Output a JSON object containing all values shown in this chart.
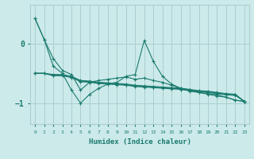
{
  "xlabel": "Humidex (Indice chaleur)",
  "ylabel": "",
  "background_color": "#cceaea",
  "grid_color": "#aacece",
  "line_color": "#1a7a6e",
  "x_values": [
    0,
    1,
    2,
    3,
    4,
    5,
    6,
    7,
    8,
    9,
    10,
    11,
    12,
    13,
    14,
    15,
    16,
    17,
    18,
    19,
    20,
    21,
    22,
    23
  ],
  "series": [
    [
      0.42,
      0.07,
      -0.25,
      -0.45,
      -0.52,
      -0.78,
      -0.65,
      -0.62,
      -0.6,
      -0.58,
      -0.56,
      -0.6,
      -0.58,
      -0.62,
      -0.65,
      -0.7,
      -0.75,
      -0.8,
      -0.82,
      -0.84,
      -0.86,
      -0.9,
      -0.95,
      -0.97
    ],
    [
      0.42,
      0.07,
      -0.38,
      -0.5,
      -0.78,
      -1.0,
      -0.85,
      -0.75,
      -0.68,
      -0.65,
      -0.55,
      -0.52,
      0.05,
      -0.3,
      -0.55,
      -0.68,
      -0.75,
      -0.78,
      -0.82,
      -0.85,
      -0.88,
      -0.9,
      -0.95,
      -0.97
    ],
    [
      -0.5,
      -0.5,
      -0.52,
      -0.52,
      -0.55,
      -0.62,
      -0.63,
      -0.65,
      -0.66,
      -0.67,
      -0.68,
      -0.7,
      -0.71,
      -0.72,
      -0.73,
      -0.74,
      -0.75,
      -0.77,
      -0.79,
      -0.8,
      -0.82,
      -0.84,
      -0.85,
      -0.97
    ],
    [
      -0.5,
      -0.5,
      -0.53,
      -0.53,
      -0.56,
      -0.63,
      -0.64,
      -0.66,
      -0.67,
      -0.68,
      -0.69,
      -0.71,
      -0.72,
      -0.73,
      -0.74,
      -0.75,
      -0.76,
      -0.78,
      -0.8,
      -0.81,
      -0.83,
      -0.85,
      -0.86,
      -0.97
    ],
    [
      -0.5,
      -0.5,
      -0.54,
      -0.54,
      -0.57,
      -0.64,
      -0.65,
      -0.67,
      -0.68,
      -0.69,
      -0.7,
      -0.72,
      -0.73,
      -0.74,
      -0.75,
      -0.76,
      -0.77,
      -0.79,
      -0.81,
      -0.82,
      -0.84,
      -0.86,
      -0.87,
      -0.97
    ]
  ],
  "ylim": [
    -1.35,
    0.65
  ],
  "yticks": [
    -1,
    0
  ],
  "xlim": [
    -0.5,
    23.5
  ]
}
